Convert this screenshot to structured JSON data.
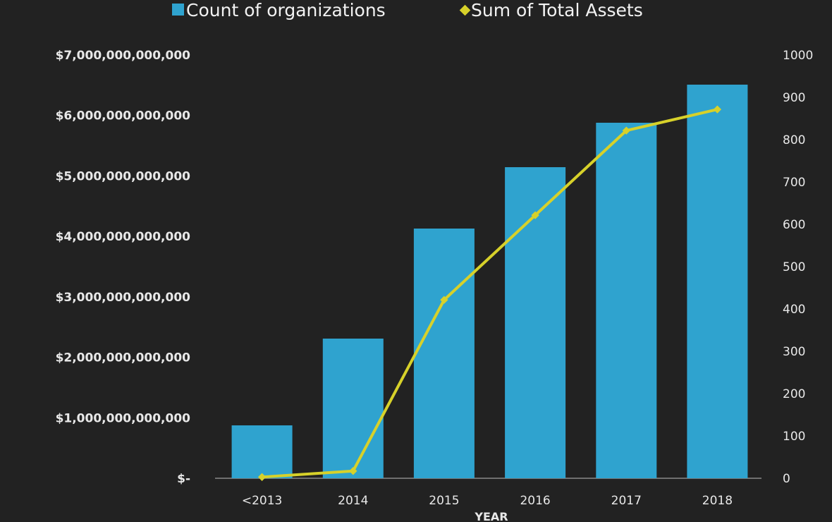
{
  "chart_data": {
    "type": "bar",
    "categories": [
      "<2013",
      "2014",
      "2015",
      "2016",
      "2017",
      "2018"
    ],
    "series": [
      {
        "name": "Count of organizations",
        "type": "bar",
        "axis": "right",
        "color": "#2fa3cf",
        "values": [
          125,
          330,
          590,
          735,
          840,
          930
        ]
      },
      {
        "name": "Sum of Total Assets",
        "type": "line",
        "axis": "left",
        "color": "#d7d12a",
        "values": [
          20000000000,
          120000000000,
          2950000000000,
          4350000000000,
          5750000000000,
          6100000000000
        ]
      }
    ],
    "xlabel": "YEAR",
    "ylabel": "",
    "ylabel_right": "",
    "ylim": [
      0,
      7000000000000
    ],
    "ylim_right": [
      0,
      1000
    ],
    "left_ticks": [
      "$-",
      "$1,000,000,000,000",
      "$2,000,000,000,000",
      "$3,000,000,000,000",
      "$4,000,000,000,000",
      "$5,000,000,000,000",
      "$6,000,000,000,000",
      "$7,000,000,000,000"
    ],
    "right_ticks": [
      "0",
      "100",
      "200",
      "300",
      "400",
      "500",
      "600",
      "700",
      "800",
      "900",
      "1000"
    ],
    "legend": {
      "position": "top",
      "items": [
        {
          "label": "Count of organizations",
          "marker": "square"
        },
        {
          "label": "Sum of Total Assets",
          "marker": "diamond"
        }
      ]
    },
    "grid": false
  }
}
